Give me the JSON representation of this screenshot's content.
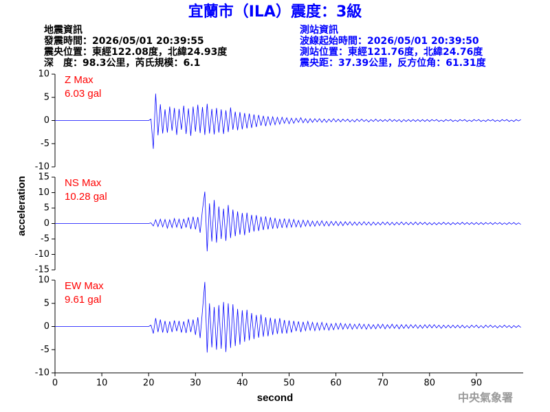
{
  "title": "宜蘭市（ILA）震度：3級",
  "header": {
    "left": [
      "地震資訊",
      "發震時間：2026/05/01 20:39:55",
      "震央位置：東經122.08度，北緯24.93度",
      "深　度：98.3公里，芮氏規模：6.1"
    ],
    "right": [
      "測站資訊",
      "波線起始時間：2026/05/01 20:39:50",
      "測站位置：東經121.76度，北緯24.76度",
      "震央距：37.39公里，反方位角：61.31度"
    ]
  },
  "y_label": "acceleration",
  "x_label": "second",
  "footer": "中央氣象署",
  "chart_data": [
    {
      "type": "line",
      "annotations": [
        "Z Max",
        "6.03 gal"
      ],
      "x": [
        0,
        0.5,
        1,
        1.5,
        2,
        2.5,
        3,
        3.5,
        4,
        4.5,
        5,
        5.5,
        6,
        6.5,
        7,
        7.5,
        8,
        8.5,
        9,
        9.5,
        10,
        10.5,
        11,
        11.5,
        12,
        12.5,
        13,
        13.5,
        14,
        14.5,
        15,
        15.5,
        16,
        16.5,
        17,
        17.5,
        18,
        18.5,
        19,
        19.5,
        20,
        20.5,
        21,
        21.5,
        22,
        22.5,
        23,
        23.5,
        24,
        24.5,
        25,
        25.5,
        26,
        26.5,
        27,
        27.5,
        28,
        28.5,
        29,
        29.5,
        30,
        30.5,
        31,
        31.5,
        32,
        32.5,
        33,
        33.5,
        34,
        34.5,
        35,
        35.5,
        36,
        36.5,
        37,
        37.5,
        38,
        38.5,
        39,
        39.5,
        40,
        40.5,
        41,
        41.5,
        42,
        42.5,
        43,
        43.5,
        44,
        44.5,
        45,
        45.5,
        46,
        46.5,
        47,
        47.5,
        48,
        48.5,
        49,
        49.5,
        50,
        50.5,
        51,
        51.5,
        52,
        52.5,
        53,
        53.5,
        54,
        54.5,
        55,
        55.5,
        56,
        56.5,
        57,
        57.5,
        58,
        58.5,
        59,
        59.5,
        60,
        60.5,
        61,
        61.5,
        62,
        62.5,
        63,
        63.5,
        64,
        64.5,
        65,
        65.5,
        66,
        66.5,
        67,
        67.5,
        68,
        68.5,
        69,
        69.5,
        70,
        70.5,
        71,
        71.5,
        72,
        72.5,
        73,
        73.5,
        74,
        74.5,
        75,
        75.5,
        76,
        76.5,
        77,
        77.5,
        78,
        78.5,
        79,
        79.5,
        80,
        80.5,
        81,
        81.5,
        82,
        82.5,
        83,
        83.5,
        84,
        84.5,
        85,
        85.5,
        86,
        86.5,
        87,
        87.5,
        88,
        88.5,
        89,
        89.5,
        90,
        90.5,
        91,
        91.5,
        92,
        92.5,
        93,
        93.5,
        94,
        94.5,
        95,
        95.5,
        96,
        96.5,
        97,
        97.5,
        98,
        98.5,
        99,
        99.5
      ],
      "series": [
        {
          "color": "#0000ff",
          "values": [
            0,
            0,
            0,
            0,
            0,
            0,
            0,
            0,
            0,
            0,
            0,
            0,
            0,
            0,
            0,
            0,
            0,
            0,
            0,
            0,
            0,
            0,
            0,
            0,
            0,
            0,
            0,
            0,
            0,
            0,
            0,
            0,
            0,
            0,
            0,
            0,
            0,
            0,
            0,
            0,
            0,
            0.3,
            -6.1,
            5.8,
            -3.2,
            3.5,
            -2.8,
            2.4,
            -2.6,
            3.0,
            -2.2,
            2.7,
            -3.1,
            2.5,
            -2.0,
            3.2,
            -2.9,
            2.6,
            -3.3,
            3.0,
            -2.4,
            3.4,
            -2.7,
            2.9,
            -3.1,
            3.6,
            -2.8,
            2.5,
            -3.0,
            2.7,
            -2.6,
            2.4,
            -2.9,
            2.2,
            -2.5,
            2.8,
            -2.0,
            1.9,
            -2.1,
            1.8,
            -1.9,
            1.6,
            -1.7,
            1.5,
            -1.6,
            1.3,
            -1.4,
            1.2,
            -1.1,
            1.0,
            -1.2,
            0.9,
            -1.0,
            0.8,
            -0.9,
            0.7,
            -0.8,
            0.7,
            -0.6,
            0.6,
            -0.7,
            0.5,
            -0.6,
            0.5,
            -0.4,
            0.6,
            -0.5,
            0.4,
            -0.5,
            0.4,
            -0.4,
            0.4,
            -0.3,
            0.4,
            -0.4,
            0.3,
            -0.4,
            0.3,
            -0.3,
            0.4,
            -0.3,
            0.3,
            -0.3,
            0.3,
            -0.2,
            0.3,
            -0.3,
            0.2,
            -0.3,
            0.3,
            -0.2,
            0.3,
            -0.2,
            0.2,
            -0.3,
            0.2,
            -0.2,
            0.3,
            -0.2,
            0.2,
            -0.2,
            0.2,
            -0.2,
            0.3,
            -0.2,
            0.2,
            -0.2,
            0.2,
            -0.3,
            0.2,
            -0.2,
            0.2,
            -0.2,
            0.2,
            -0.2,
            0.2,
            -0.2,
            0.2,
            -0.2,
            0.2,
            -0.2,
            0.2,
            -0.1,
            0.2,
            -0.2,
            0.1,
            -0.2,
            0.2,
            -0.1,
            0.2,
            -0.2,
            0.1,
            -0.2,
            0.2,
            -0.1,
            0.2,
            -0.2,
            0.1,
            -0.2,
            0.2,
            -0.1,
            0.2,
            -0.2,
            0.1,
            -0.2,
            0.2,
            -0.1,
            0.2,
            -0.2,
            0.1,
            -0.2,
            0.2,
            -0.1,
            0.2,
            -0.2,
            0.1,
            -0.2,
            0.2,
            -0.1,
            0.2
          ]
        }
      ],
      "xlim": [
        0,
        100
      ],
      "ylim": [
        -10,
        10
      ],
      "yticks": [
        -10,
        -5,
        0,
        5,
        10
      ]
    },
    {
      "type": "line",
      "annotations": [
        "NS Max",
        "10.28 gal"
      ],
      "series": [
        {
          "color": "#0000ff",
          "values": [
            0,
            0,
            0,
            0,
            0,
            0,
            0,
            0,
            0,
            0,
            0,
            0,
            0,
            0,
            0,
            0,
            0,
            0,
            0,
            0,
            0,
            0,
            0,
            0,
            0,
            0,
            0,
            0,
            0,
            0,
            0,
            0,
            0,
            0,
            0,
            0,
            0,
            0,
            0,
            0,
            0,
            0.2,
            -0.8,
            1.2,
            -1.0,
            1.4,
            -1.1,
            1.3,
            -1.5,
            1.2,
            -1.3,
            1.6,
            -1.2,
            1.4,
            -1.7,
            1.5,
            -1.3,
            2.0,
            -1.8,
            2.2,
            -1.9,
            2.1,
            -3.0,
            4.5,
            10.3,
            -9.0,
            6.5,
            -5.8,
            7.6,
            -6.2,
            5.5,
            -5.0,
            4.8,
            -5.6,
            6.0,
            -4.7,
            4.5,
            -4.1,
            3.9,
            -3.6,
            3.4,
            -3.8,
            3.5,
            -3.0,
            2.8,
            -2.6,
            2.7,
            -2.4,
            2.2,
            -2.1,
            2.3,
            -1.9,
            2.0,
            -1.7,
            1.8,
            -1.6,
            1.5,
            -1.4,
            1.6,
            -1.3,
            1.4,
            -1.2,
            1.3,
            -1.1,
            1.0,
            -1.2,
            1.1,
            -0.9,
            1.0,
            -0.9,
            0.8,
            -0.9,
            0.8,
            -0.7,
            0.9,
            -0.8,
            0.7,
            -0.8,
            0.7,
            -0.6,
            0.7,
            -0.7,
            0.6,
            -0.7,
            0.6,
            -0.5,
            0.6,
            -0.6,
            0.5,
            -0.6,
            0.5,
            -0.5,
            0.6,
            -0.5,
            0.5,
            -0.6,
            0.5,
            -0.5,
            0.4,
            -0.5,
            0.5,
            -0.4,
            0.5,
            -0.5,
            0.4,
            -0.5,
            0.4,
            -0.4,
            0.5,
            -0.4,
            0.4,
            -0.4,
            0.4,
            -0.4,
            0.5,
            -0.4,
            0.4,
            -0.3,
            0.4,
            -0.4,
            0.3,
            -0.4,
            0.3,
            -0.4,
            0.3,
            -0.3,
            0.4,
            -0.3,
            0.3,
            -0.4,
            0.3,
            -0.3,
            0.3,
            -0.3,
            0.4,
            -0.3,
            0.3,
            -0.3,
            0.3,
            -0.3,
            0.3,
            -0.3,
            0.3,
            -0.3,
            0.3,
            -0.2,
            0.3,
            -0.3,
            0.3,
            -0.2,
            0.3,
            -0.3,
            0.2,
            -0.3,
            0.3,
            -0.2,
            0.3,
            -0.3,
            0.2,
            -0.3
          ]
        }
      ],
      "xlim": [
        0,
        100
      ],
      "ylim": [
        -15,
        15
      ],
      "yticks": [
        -15,
        -10,
        -5,
        0,
        5,
        10,
        15
      ]
    },
    {
      "type": "line",
      "annotations": [
        "EW Max",
        "9.61 gal"
      ],
      "series": [
        {
          "color": "#0000ff",
          "values": [
            0,
            0,
            0,
            0,
            0,
            0,
            0,
            0,
            0,
            0,
            0,
            0,
            0,
            0,
            0,
            0,
            0,
            0,
            0,
            0,
            0,
            0,
            0,
            0,
            0,
            0,
            0,
            0,
            0,
            0,
            0,
            0,
            0,
            0,
            0,
            0,
            0,
            0,
            0,
            0,
            0,
            0.3,
            -1.5,
            1.8,
            -1.2,
            1.5,
            -1.3,
            1.2,
            -1.4,
            1.1,
            -1.2,
            1.3,
            -1.0,
            1.2,
            -1.3,
            1.1,
            -1.4,
            1.6,
            -1.2,
            1.5,
            -1.8,
            2.0,
            -2.5,
            3.5,
            9.6,
            -5.6,
            5.0,
            -4.5,
            4.2,
            -5.0,
            4.6,
            -4.8,
            5.3,
            -5.5,
            5.0,
            -4.6,
            4.8,
            -4.2,
            3.8,
            -3.9,
            3.5,
            -3.3,
            3.6,
            -3.0,
            2.9,
            -2.7,
            2.5,
            -2.4,
            2.6,
            -2.2,
            2.0,
            -2.1,
            1.9,
            -1.8,
            1.7,
            -1.6,
            1.8,
            -1.5,
            1.4,
            -1.5,
            1.3,
            -1.3,
            1.2,
            -1.0,
            1.1,
            -1.2,
            1.0,
            -0.9,
            1.1,
            -0.8,
            0.9,
            -0.9,
            0.8,
            -0.8,
            0.9,
            -0.7,
            0.7,
            -0.8,
            0.6,
            -0.7,
            0.7,
            -0.6,
            0.7,
            -0.6,
            0.6,
            -0.5,
            0.6,
            -0.6,
            0.5,
            -0.5,
            0.6,
            -0.5,
            0.5,
            -0.6,
            0.5,
            -0.5,
            0.4,
            -0.5,
            0.5,
            -0.4,
            0.5,
            -0.5,
            0.4,
            -0.4,
            0.5,
            -0.4,
            0.4,
            -0.5,
            0.4,
            -0.4,
            0.4,
            -0.4,
            0.4,
            -0.3,
            0.4,
            -0.4,
            0.3,
            -0.4,
            0.4,
            -0.3,
            0.4,
            -0.3,
            0.4,
            -0.3,
            0.3,
            -0.4,
            0.3,
            -0.3,
            0.3,
            -0.3,
            0.3,
            -0.3,
            0.3,
            -0.3,
            0.3,
            -0.3,
            0.2,
            -0.3,
            0.3,
            -0.2,
            0.3,
            -0.3,
            0.2,
            -0.3,
            0.3,
            -0.2,
            0.3,
            -0.2,
            0.2,
            -0.3,
            0.2,
            -0.2,
            0.3,
            -0.2,
            0.2,
            -0.3,
            0.2,
            -0.2,
            0.2,
            -0.2
          ]
        }
      ],
      "xlim": [
        0,
        100
      ],
      "ylim": [
        -10,
        10
      ],
      "yticks": [
        -10,
        -5,
        0,
        5,
        10
      ],
      "xticks": [
        0,
        10,
        20,
        30,
        40,
        50,
        60,
        70,
        80,
        90
      ]
    }
  ]
}
